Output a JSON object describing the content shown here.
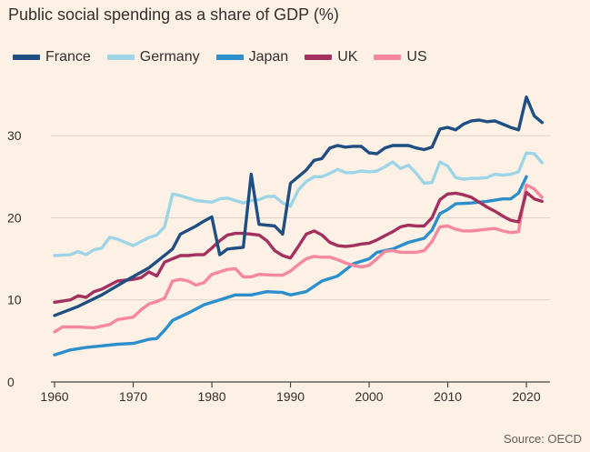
{
  "chart_data": {
    "type": "line",
    "title": "Public social spending as a share of GDP (%)",
    "source": "Source: OECD",
    "xlabel": "",
    "ylabel": "",
    "xlim": [
      1960,
      2023
    ],
    "ylim": [
      0,
      36
    ],
    "x_ticks": [
      1960,
      1970,
      1980,
      1990,
      2000,
      2010,
      2020
    ],
    "y_ticks": [
      0,
      10,
      20,
      30
    ],
    "legend_position": "top-left",
    "series": [
      {
        "name": "France",
        "color": "#1f4e83",
        "points": [
          [
            1960,
            8.1
          ],
          [
            1963,
            9.2
          ],
          [
            1966,
            10.6
          ],
          [
            1969,
            12.3
          ],
          [
            1972,
            13.9
          ],
          [
            1975,
            16.2
          ],
          [
            1976,
            18.0
          ],
          [
            1978,
            19.0
          ],
          [
            1979,
            19.6
          ],
          [
            1980,
            20.1
          ],
          [
            1981,
            15.5
          ],
          [
            1982,
            16.2
          ],
          [
            1984,
            16.4
          ],
          [
            1985,
            25.3
          ],
          [
            1986,
            19.2
          ],
          [
            1988,
            19.0
          ],
          [
            1989,
            18.0
          ],
          [
            1990,
            24.2
          ],
          [
            1991,
            25.0
          ],
          [
            1992,
            25.8
          ],
          [
            1993,
            27.0
          ],
          [
            1994,
            27.2
          ],
          [
            1995,
            28.5
          ],
          [
            1996,
            28.8
          ],
          [
            1997,
            28.6
          ],
          [
            1998,
            28.7
          ],
          [
            1999,
            28.7
          ],
          [
            2000,
            27.9
          ],
          [
            2001,
            27.8
          ],
          [
            2002,
            28.5
          ],
          [
            2003,
            28.8
          ],
          [
            2004,
            28.8
          ],
          [
            2005,
            28.8
          ],
          [
            2006,
            28.5
          ],
          [
            2007,
            28.3
          ],
          [
            2008,
            28.6
          ],
          [
            2009,
            30.8
          ],
          [
            2010,
            31.0
          ],
          [
            2011,
            30.7
          ],
          [
            2012,
            31.4
          ],
          [
            2013,
            31.8
          ],
          [
            2014,
            31.9
          ],
          [
            2015,
            31.7
          ],
          [
            2016,
            31.8
          ],
          [
            2017,
            31.4
          ],
          [
            2018,
            31.0
          ],
          [
            2019,
            30.7
          ],
          [
            2020,
            34.7
          ],
          [
            2021,
            32.4
          ],
          [
            2022,
            31.6
          ]
        ]
      },
      {
        "name": "Germany",
        "color": "#9dd5e6",
        "points": [
          [
            1960,
            15.4
          ],
          [
            1962,
            15.5
          ],
          [
            1963,
            15.9
          ],
          [
            1964,
            15.5
          ],
          [
            1965,
            16.1
          ],
          [
            1966,
            16.3
          ],
          [
            1967,
            17.6
          ],
          [
            1968,
            17.4
          ],
          [
            1970,
            16.6
          ],
          [
            1971,
            17.1
          ],
          [
            1972,
            17.6
          ],
          [
            1973,
            17.9
          ],
          [
            1974,
            18.9
          ],
          [
            1975,
            22.9
          ],
          [
            1976,
            22.7
          ],
          [
            1978,
            22.1
          ],
          [
            1980,
            21.9
          ],
          [
            1981,
            22.3
          ],
          [
            1982,
            22.4
          ],
          [
            1983,
            22.1
          ],
          [
            1984,
            21.8
          ],
          [
            1985,
            22.1
          ],
          [
            1986,
            22.2
          ],
          [
            1987,
            22.6
          ],
          [
            1988,
            22.6
          ],
          [
            1989,
            21.8
          ],
          [
            1990,
            21.4
          ],
          [
            1991,
            23.4
          ],
          [
            1992,
            24.4
          ],
          [
            1993,
            25.0
          ],
          [
            1994,
            25.0
          ],
          [
            1995,
            25.4
          ],
          [
            1996,
            25.9
          ],
          [
            1997,
            25.5
          ],
          [
            1998,
            25.5
          ],
          [
            1999,
            25.7
          ],
          [
            2000,
            25.6
          ],
          [
            2001,
            25.7
          ],
          [
            2002,
            26.2
          ],
          [
            2003,
            26.8
          ],
          [
            2004,
            26.0
          ],
          [
            2005,
            26.4
          ],
          [
            2006,
            25.4
          ],
          [
            2007,
            24.2
          ],
          [
            2008,
            24.3
          ],
          [
            2009,
            26.8
          ],
          [
            2010,
            26.3
          ],
          [
            2011,
            24.9
          ],
          [
            2012,
            24.7
          ],
          [
            2013,
            24.8
          ],
          [
            2014,
            24.8
          ],
          [
            2015,
            24.9
          ],
          [
            2016,
            25.3
          ],
          [
            2017,
            25.2
          ],
          [
            2018,
            25.3
          ],
          [
            2019,
            25.6
          ],
          [
            2020,
            27.9
          ],
          [
            2021,
            27.8
          ],
          [
            2022,
            26.7
          ]
        ]
      },
      {
        "name": "Japan",
        "color": "#2c8fcb",
        "points": [
          [
            1960,
            3.3
          ],
          [
            1962,
            3.9
          ],
          [
            1964,
            4.2
          ],
          [
            1966,
            4.4
          ],
          [
            1968,
            4.6
          ],
          [
            1970,
            4.7
          ],
          [
            1972,
            5.2
          ],
          [
            1973,
            5.3
          ],
          [
            1974,
            6.3
          ],
          [
            1975,
            7.5
          ],
          [
            1977,
            8.4
          ],
          [
            1979,
            9.4
          ],
          [
            1981,
            10.0
          ],
          [
            1983,
            10.6
          ],
          [
            1985,
            10.6
          ],
          [
            1987,
            11.0
          ],
          [
            1989,
            10.9
          ],
          [
            1990,
            10.6
          ],
          [
            1992,
            11.0
          ],
          [
            1994,
            12.3
          ],
          [
            1996,
            12.9
          ],
          [
            1998,
            14.4
          ],
          [
            2000,
            15.0
          ],
          [
            2001,
            15.8
          ],
          [
            2003,
            16.2
          ],
          [
            2005,
            17.0
          ],
          [
            2007,
            17.5
          ],
          [
            2008,
            18.5
          ],
          [
            2009,
            20.5
          ],
          [
            2010,
            21.0
          ],
          [
            2011,
            21.7
          ],
          [
            2013,
            21.8
          ],
          [
            2015,
            22.0
          ],
          [
            2017,
            22.3
          ],
          [
            2018,
            22.3
          ],
          [
            2019,
            23.0
          ],
          [
            2020,
            25.0
          ]
        ]
      },
      {
        "name": "UK",
        "color": "#a3305f",
        "points": [
          [
            1960,
            9.7
          ],
          [
            1962,
            10.0
          ],
          [
            1963,
            10.5
          ],
          [
            1964,
            10.3
          ],
          [
            1965,
            11.0
          ],
          [
            1966,
            11.3
          ],
          [
            1968,
            12.3
          ],
          [
            1970,
            12.5
          ],
          [
            1971,
            12.7
          ],
          [
            1972,
            13.4
          ],
          [
            1973,
            12.9
          ],
          [
            1974,
            14.6
          ],
          [
            1976,
            15.4
          ],
          [
            1977,
            15.4
          ],
          [
            1978,
            15.5
          ],
          [
            1979,
            15.5
          ],
          [
            1980,
            16.3
          ],
          [
            1981,
            17.2
          ],
          [
            1982,
            17.9
          ],
          [
            1983,
            18.1
          ],
          [
            1984,
            18.1
          ],
          [
            1985,
            18.0
          ],
          [
            1986,
            17.9
          ],
          [
            1987,
            17.2
          ],
          [
            1988,
            16.0
          ],
          [
            1989,
            15.4
          ],
          [
            1990,
            15.1
          ],
          [
            1991,
            16.5
          ],
          [
            1992,
            18.0
          ],
          [
            1993,
            18.4
          ],
          [
            1994,
            17.9
          ],
          [
            1995,
            17.0
          ],
          [
            1996,
            16.6
          ],
          [
            1997,
            16.5
          ],
          [
            1998,
            16.6
          ],
          [
            1999,
            16.8
          ],
          [
            2000,
            16.9
          ],
          [
            2001,
            17.3
          ],
          [
            2002,
            17.8
          ],
          [
            2003,
            18.3
          ],
          [
            2004,
            18.9
          ],
          [
            2005,
            19.1
          ],
          [
            2006,
            19.0
          ],
          [
            2007,
            19.0
          ],
          [
            2008,
            20.0
          ],
          [
            2009,
            22.2
          ],
          [
            2010,
            22.9
          ],
          [
            2011,
            23.0
          ],
          [
            2012,
            22.8
          ],
          [
            2013,
            22.5
          ],
          [
            2014,
            21.9
          ],
          [
            2015,
            21.3
          ],
          [
            2016,
            20.8
          ],
          [
            2017,
            20.2
          ],
          [
            2018,
            19.7
          ],
          [
            2019,
            19.5
          ],
          [
            2020,
            23.1
          ],
          [
            2021,
            22.3
          ],
          [
            2022,
            22.0
          ]
        ]
      },
      {
        "name": "US",
        "color": "#f5879f",
        "points": [
          [
            1960,
            6.1
          ],
          [
            1961,
            6.7
          ],
          [
            1963,
            6.7
          ],
          [
            1965,
            6.6
          ],
          [
            1967,
            7.0
          ],
          [
            1968,
            7.6
          ],
          [
            1970,
            7.9
          ],
          [
            1971,
            8.8
          ],
          [
            1972,
            9.5
          ],
          [
            1973,
            9.8
          ],
          [
            1974,
            10.2
          ],
          [
            1975,
            12.3
          ],
          [
            1976,
            12.5
          ],
          [
            1977,
            12.3
          ],
          [
            1978,
            11.8
          ],
          [
            1979,
            12.1
          ],
          [
            1980,
            13.1
          ],
          [
            1982,
            13.7
          ],
          [
            1983,
            13.8
          ],
          [
            1984,
            12.8
          ],
          [
            1985,
            12.8
          ],
          [
            1986,
            13.1
          ],
          [
            1988,
            13.0
          ],
          [
            1989,
            13.0
          ],
          [
            1990,
            13.5
          ],
          [
            1991,
            14.3
          ],
          [
            1992,
            15.0
          ],
          [
            1993,
            15.3
          ],
          [
            1994,
            15.2
          ],
          [
            1995,
            15.2
          ],
          [
            1996,
            14.9
          ],
          [
            1997,
            14.5
          ],
          [
            1998,
            14.2
          ],
          [
            1999,
            14.0
          ],
          [
            2000,
            14.2
          ],
          [
            2001,
            15.0
          ],
          [
            2002,
            15.9
          ],
          [
            2003,
            16.0
          ],
          [
            2004,
            15.8
          ],
          [
            2005,
            15.8
          ],
          [
            2006,
            15.8
          ],
          [
            2007,
            16.0
          ],
          [
            2008,
            17.1
          ],
          [
            2009,
            18.9
          ],
          [
            2010,
            19.0
          ],
          [
            2011,
            18.6
          ],
          [
            2012,
            18.4
          ],
          [
            2013,
            18.4
          ],
          [
            2014,
            18.5
          ],
          [
            2015,
            18.6
          ],
          [
            2016,
            18.7
          ],
          [
            2017,
            18.4
          ],
          [
            2018,
            18.2
          ],
          [
            2019,
            18.3
          ],
          [
            2020,
            24.0
          ],
          [
            2021,
            23.5
          ],
          [
            2022,
            22.5
          ]
        ]
      }
    ]
  }
}
